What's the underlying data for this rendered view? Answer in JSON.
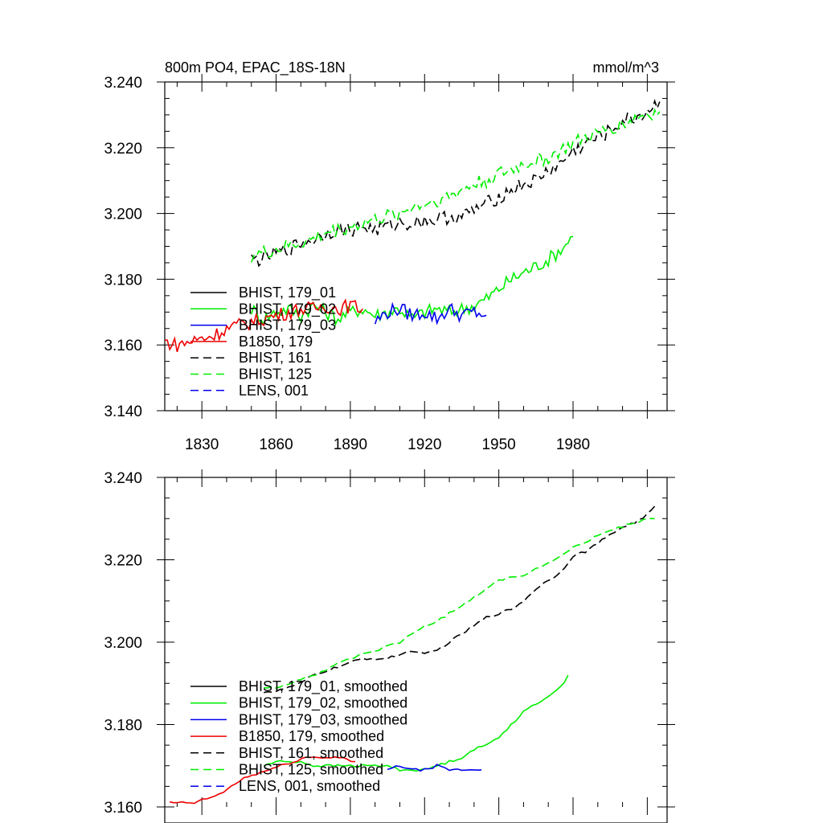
{
  "chart_data": [
    {
      "type": "line",
      "title": "800m PO4, EPAC_18S-18N",
      "units": "mmol/m^3",
      "xlim": [
        1815,
        2018
      ],
      "ylim": [
        3.14,
        3.24
      ],
      "x_ticks": [
        1830,
        1860,
        1890,
        1920,
        1950,
        1980
      ],
      "y_ticks": [
        "3.140",
        "3.160",
        "3.180",
        "3.200",
        "3.220",
        "3.240"
      ],
      "legend_placement": "bottom-left",
      "series": [
        {
          "name": "BHIST, 179_01",
          "color": "#000000",
          "dash": "solid",
          "x": [],
          "y": []
        },
        {
          "name": "BHIST, 179_02",
          "color": "#00ee00",
          "dash": "solid",
          "x": [
            1850,
            1855,
            1860,
            1865,
            1870,
            1875,
            1880,
            1885,
            1890,
            1895,
            1900,
            1905,
            1910,
            1915,
            1920,
            1925,
            1930,
            1935,
            1940,
            1945,
            1950,
            1955,
            1960,
            1965,
            1970,
            1975,
            1980
          ],
          "y": [
            3.171,
            3.168,
            3.17,
            3.171,
            3.169,
            3.172,
            3.17,
            3.168,
            3.17,
            3.171,
            3.169,
            3.17,
            3.171,
            3.168,
            3.17,
            3.171,
            3.17,
            3.171,
            3.172,
            3.174,
            3.177,
            3.18,
            3.182,
            3.184,
            3.186,
            3.189,
            3.193
          ]
        },
        {
          "name": "BHIST, 179_03",
          "color": "#0000ee",
          "dash": "solid",
          "x": [
            1900,
            1905,
            1910,
            1915,
            1920,
            1925,
            1930,
            1935,
            1940,
            1945
          ],
          "y": [
            3.167,
            3.17,
            3.171,
            3.169,
            3.17,
            3.168,
            3.171,
            3.169,
            3.17,
            3.169
          ]
        },
        {
          "name": "B1850, 179",
          "color": "#ee0000",
          "dash": "solid",
          "x": [
            1815,
            1820,
            1825,
            1830,
            1835,
            1840,
            1845,
            1850,
            1855,
            1860,
            1865,
            1870,
            1875,
            1880,
            1885,
            1890,
            1895
          ],
          "y": [
            3.161,
            3.16,
            3.161,
            3.162,
            3.163,
            3.165,
            3.166,
            3.167,
            3.168,
            3.169,
            3.17,
            3.171,
            3.171,
            3.172,
            3.171,
            3.172,
            3.171
          ]
        },
        {
          "name": "BHIST, 161",
          "color": "#000000",
          "dash": "dashed",
          "x": [
            1850,
            1855,
            1860,
            1865,
            1870,
            1875,
            1880,
            1885,
            1890,
            1895,
            1900,
            1905,
            1910,
            1915,
            1920,
            1925,
            1930,
            1935,
            1940,
            1945,
            1950,
            1955,
            1960,
            1965,
            1970,
            1975,
            1980,
            1985,
            1990,
            1995,
            2000,
            2005,
            2010,
            2015
          ],
          "y": [
            3.186,
            3.186,
            3.188,
            3.189,
            3.191,
            3.192,
            3.194,
            3.195,
            3.195,
            3.196,
            3.195,
            3.196,
            3.197,
            3.197,
            3.198,
            3.198,
            3.199,
            3.199,
            3.201,
            3.203,
            3.205,
            3.207,
            3.209,
            3.21,
            3.213,
            3.215,
            3.219,
            3.221,
            3.223,
            3.225,
            3.228,
            3.229,
            3.231,
            3.234
          ]
        },
        {
          "name": "BHIST, 125",
          "color": "#00ee00",
          "dash": "dashed",
          "x": [
            1850,
            1855,
            1860,
            1865,
            1870,
            1875,
            1880,
            1885,
            1890,
            1895,
            1900,
            1905,
            1910,
            1915,
            1920,
            1925,
            1930,
            1935,
            1940,
            1945,
            1950,
            1955,
            1960,
            1965,
            1970,
            1975,
            1980,
            1985,
            1990,
            1995,
            2000,
            2005,
            2010,
            2015
          ],
          "y": [
            3.187,
            3.188,
            3.189,
            3.19,
            3.191,
            3.192,
            3.194,
            3.195,
            3.196,
            3.197,
            3.198,
            3.199,
            3.2,
            3.202,
            3.203,
            3.204,
            3.205,
            3.207,
            3.209,
            3.21,
            3.212,
            3.213,
            3.215,
            3.216,
            3.217,
            3.219,
            3.221,
            3.223,
            3.224,
            3.226,
            3.227,
            3.229,
            3.23,
            3.231
          ]
        },
        {
          "name": "LENS, 001",
          "color": "#0000ee",
          "dash": "dashed",
          "x": [],
          "y": []
        }
      ]
    },
    {
      "type": "line",
      "title": "",
      "units": "",
      "xlim": [
        1815,
        2018
      ],
      "ylim": [
        3.16,
        3.24
      ],
      "x_ticks": [],
      "y_ticks": [
        "3.160",
        "3.180",
        "3.200",
        "3.220",
        "3.240"
      ],
      "legend_placement": "bottom-left",
      "series": [
        {
          "name": "BHIST, 179_01, smoothed",
          "color": "#000000",
          "dash": "solid",
          "x": [],
          "y": []
        },
        {
          "name": "BHIST, 179_02, smoothed",
          "color": "#00ee00",
          "dash": "solid",
          "x": [
            1855,
            1860,
            1865,
            1870,
            1875,
            1880,
            1885,
            1890,
            1895,
            1900,
            1905,
            1910,
            1915,
            1920,
            1925,
            1930,
            1935,
            1940,
            1945,
            1950,
            1955,
            1960,
            1965,
            1970,
            1975,
            1978
          ],
          "y": [
            3.17,
            3.171,
            3.171,
            3.171,
            3.17,
            3.17,
            3.17,
            3.17,
            3.17,
            3.17,
            3.17,
            3.169,
            3.169,
            3.169,
            3.17,
            3.171,
            3.172,
            3.174,
            3.175,
            3.177,
            3.18,
            3.183,
            3.185,
            3.187,
            3.189,
            3.192
          ]
        },
        {
          "name": "BHIST, 179_03, smoothed",
          "color": "#0000ee",
          "dash": "solid",
          "x": [
            1905,
            1910,
            1915,
            1920,
            1925,
            1930,
            1935,
            1940,
            1943
          ],
          "y": [
            3.169,
            3.17,
            3.169,
            3.169,
            3.17,
            3.169,
            3.169,
            3.169,
            3.169
          ]
        },
        {
          "name": "B1850, 179, smoothed",
          "color": "#ee0000",
          "dash": "solid",
          "x": [
            1817,
            1822,
            1827,
            1832,
            1837,
            1842,
            1847,
            1852,
            1857,
            1862,
            1867,
            1872,
            1877,
            1882,
            1887,
            1892
          ],
          "y": [
            3.161,
            3.161,
            3.161,
            3.162,
            3.163,
            3.165,
            3.167,
            3.168,
            3.169,
            3.17,
            3.171,
            3.172,
            3.172,
            3.172,
            3.172,
            3.171
          ]
        },
        {
          "name": "BHIST, 161, smoothed",
          "color": "#000000",
          "dash": "dashed",
          "x": [
            1855,
            1860,
            1865,
            1870,
            1875,
            1880,
            1885,
            1890,
            1895,
            1900,
            1905,
            1910,
            1915,
            1920,
            1925,
            1930,
            1935,
            1940,
            1945,
            1950,
            1955,
            1960,
            1965,
            1970,
            1975,
            1980,
            1985,
            1990,
            1995,
            2000,
            2005,
            2010,
            2013
          ],
          "y": [
            3.188,
            3.188,
            3.189,
            3.19,
            3.192,
            3.193,
            3.194,
            3.195,
            3.196,
            3.196,
            3.196,
            3.197,
            3.198,
            3.197,
            3.198,
            3.2,
            3.202,
            3.204,
            3.206,
            3.207,
            3.208,
            3.21,
            3.213,
            3.215,
            3.217,
            3.221,
            3.222,
            3.224,
            3.226,
            3.228,
            3.229,
            3.231,
            3.233
          ]
        },
        {
          "name": "BHIST, 125, smoothed",
          "color": "#00ee00",
          "dash": "dashed",
          "x": [
            1855,
            1860,
            1865,
            1870,
            1875,
            1880,
            1885,
            1890,
            1895,
            1900,
            1905,
            1910,
            1915,
            1920,
            1925,
            1930,
            1935,
            1940,
            1945,
            1950,
            1955,
            1960,
            1965,
            1970,
            1975,
            1980,
            1985,
            1990,
            1995,
            2000,
            2005,
            2010,
            2013
          ],
          "y": [
            3.189,
            3.189,
            3.19,
            3.191,
            3.192,
            3.193,
            3.195,
            3.196,
            3.197,
            3.198,
            3.199,
            3.2,
            3.202,
            3.204,
            3.205,
            3.207,
            3.209,
            3.211,
            3.213,
            3.215,
            3.216,
            3.216,
            3.218,
            3.219,
            3.221,
            3.223,
            3.224,
            3.226,
            3.227,
            3.228,
            3.229,
            3.23,
            3.23
          ]
        },
        {
          "name": "LENS, 001, smoothed",
          "color": "#0000ee",
          "dash": "dashed",
          "x": [],
          "y": []
        }
      ]
    }
  ]
}
